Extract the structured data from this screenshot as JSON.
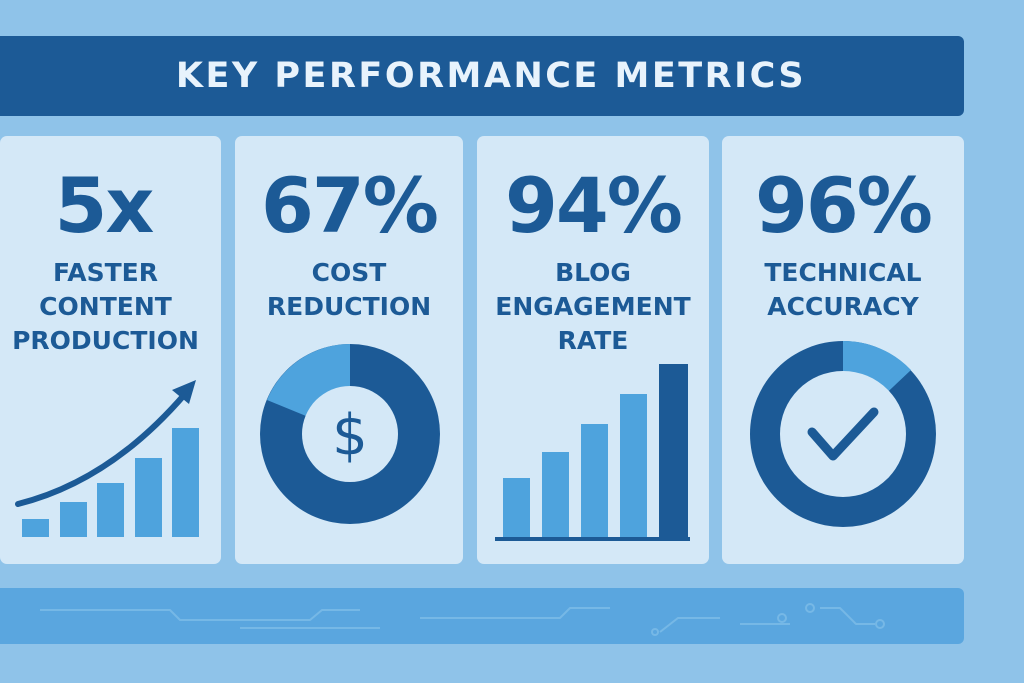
{
  "header": {
    "title": "KEY PERFORMANCE METRICS"
  },
  "metrics": [
    {
      "value": "5x",
      "label": "FASTER CONTENT PRODUCTION",
      "icon": "growth-bar-chart-arrow-icon"
    },
    {
      "value": "67%",
      "label": "COST REDUCTION",
      "icon": "dollar-donut-icon",
      "symbol": "$"
    },
    {
      "value": "94%",
      "label": "BLOG ENGAGEMENT RATE",
      "icon": "bar-chart-icon"
    },
    {
      "value": "96%",
      "label": "TECHNICAL ACCURACY",
      "icon": "checkmark-donut-icon"
    }
  ],
  "colors": {
    "background": "#8fc3e9",
    "card": "#d4e8f7",
    "dark_blue": "#1c5a96",
    "mid_blue": "#4ea3dd",
    "banner_text": "#e8f3fc"
  }
}
